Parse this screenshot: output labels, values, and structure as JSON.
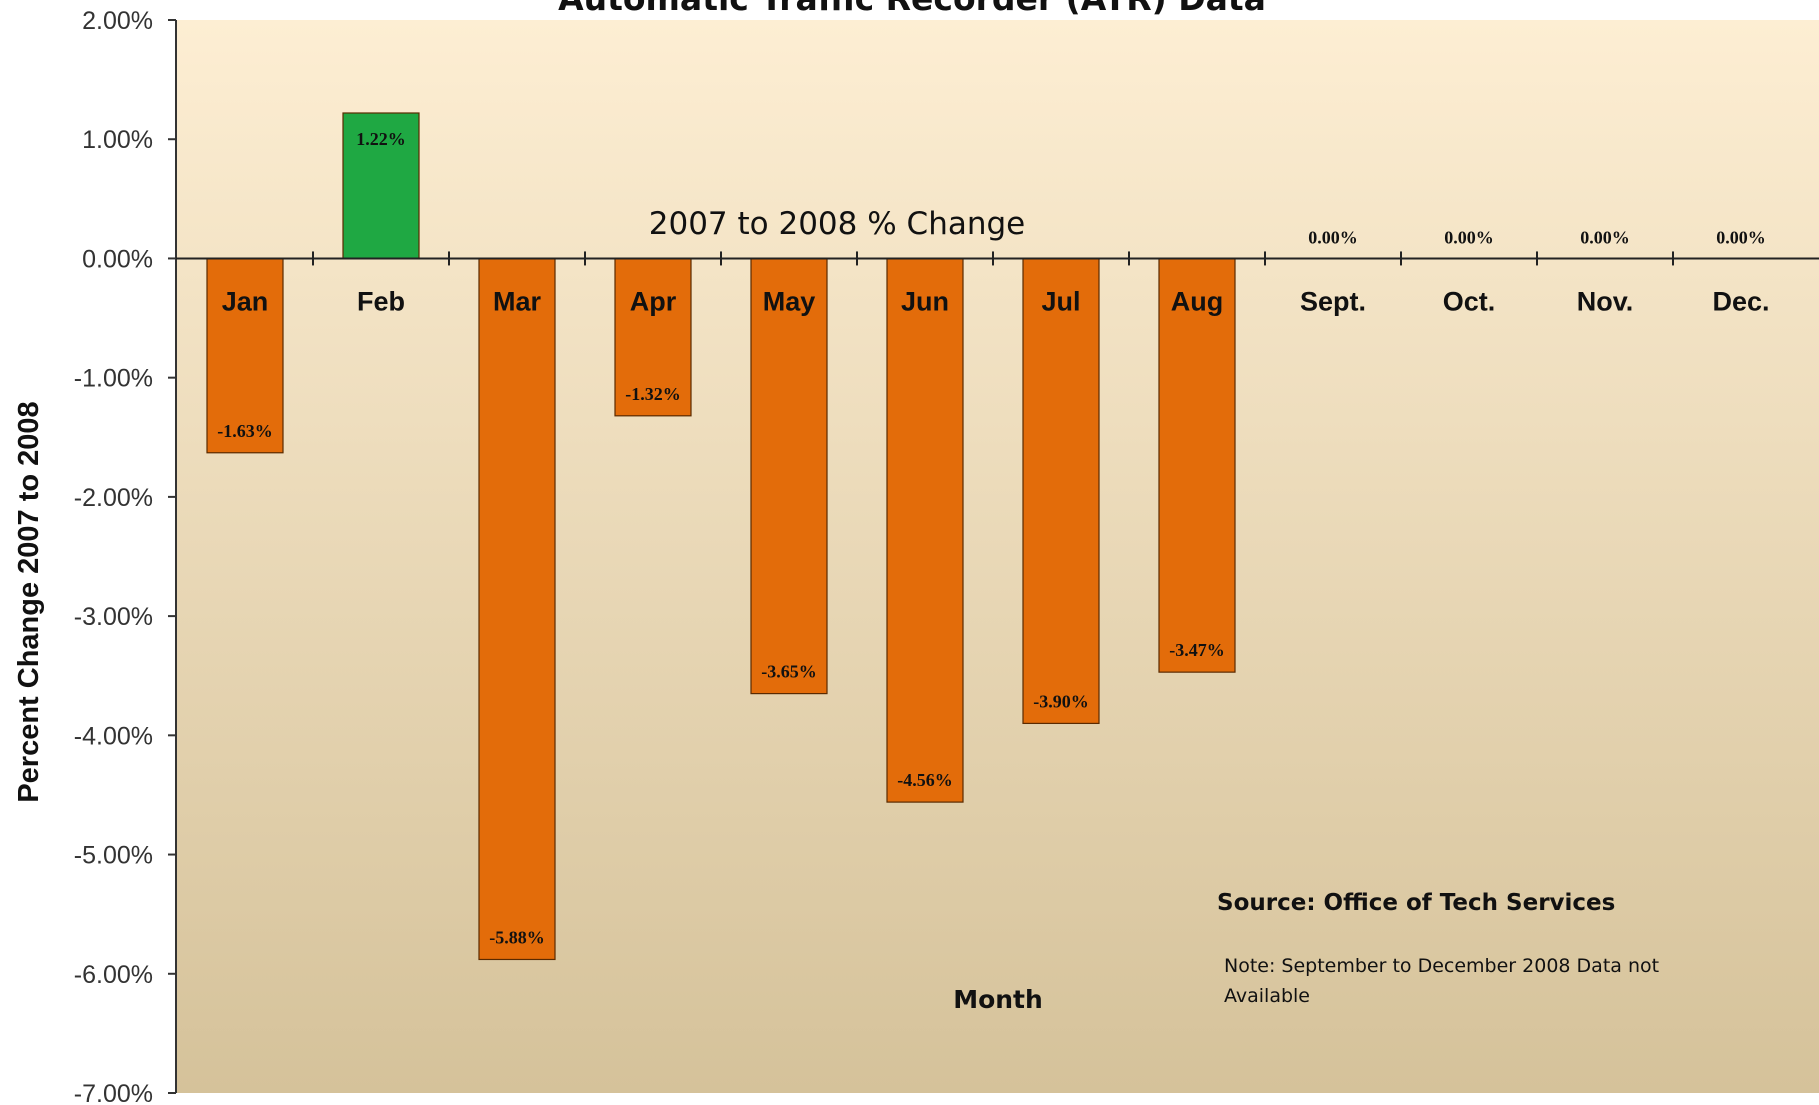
{
  "chart_data": {
    "type": "bar",
    "title": "Automatic Traffic Recorder (ATR) Data",
    "subtitle": "2007 to 2008 % Change",
    "xlabel": "Month",
    "ylabel": "Percent Change 2007 to 2008",
    "ylim": [
      -7.0,
      2.0
    ],
    "yticks": [
      "2.00%",
      "1.00%",
      "0.00%",
      "-1.00%",
      "-2.00%",
      "-3.00%",
      "-4.00%",
      "-5.00%",
      "-6.00%",
      "-7.00%"
    ],
    "categories": [
      "Jan",
      "Feb",
      "Mar",
      "Apr",
      "May",
      "Jun",
      "Jul",
      "Aug",
      "Sept.",
      "Oct.",
      "Nov.",
      "Dec."
    ],
    "values": [
      -1.63,
      1.22,
      -5.88,
      -1.32,
      -3.65,
      -4.56,
      -3.9,
      -3.47,
      0.0,
      0.0,
      0.0,
      0.0
    ],
    "data_labels": [
      "-1.63%",
      "1.22%",
      "-5.88%",
      "-1.32%",
      "-3.65%",
      "-4.56%",
      "-3.90%",
      "-3.47%",
      "0.00%",
      "0.00%",
      "0.00%",
      "0.00%"
    ],
    "colors": {
      "negative": "#e36c0a",
      "positive": "#1fa843",
      "bar_edge": "#5a2a00",
      "plot_bg_top": "#fdeed3",
      "plot_bg_bottom": "#d5c29a"
    },
    "grid": false,
    "annotations": {
      "source": "Source: Office of Tech Services",
      "note_line1": "Note: September  to December 2008 Data not",
      "note_line2": "Available"
    }
  }
}
